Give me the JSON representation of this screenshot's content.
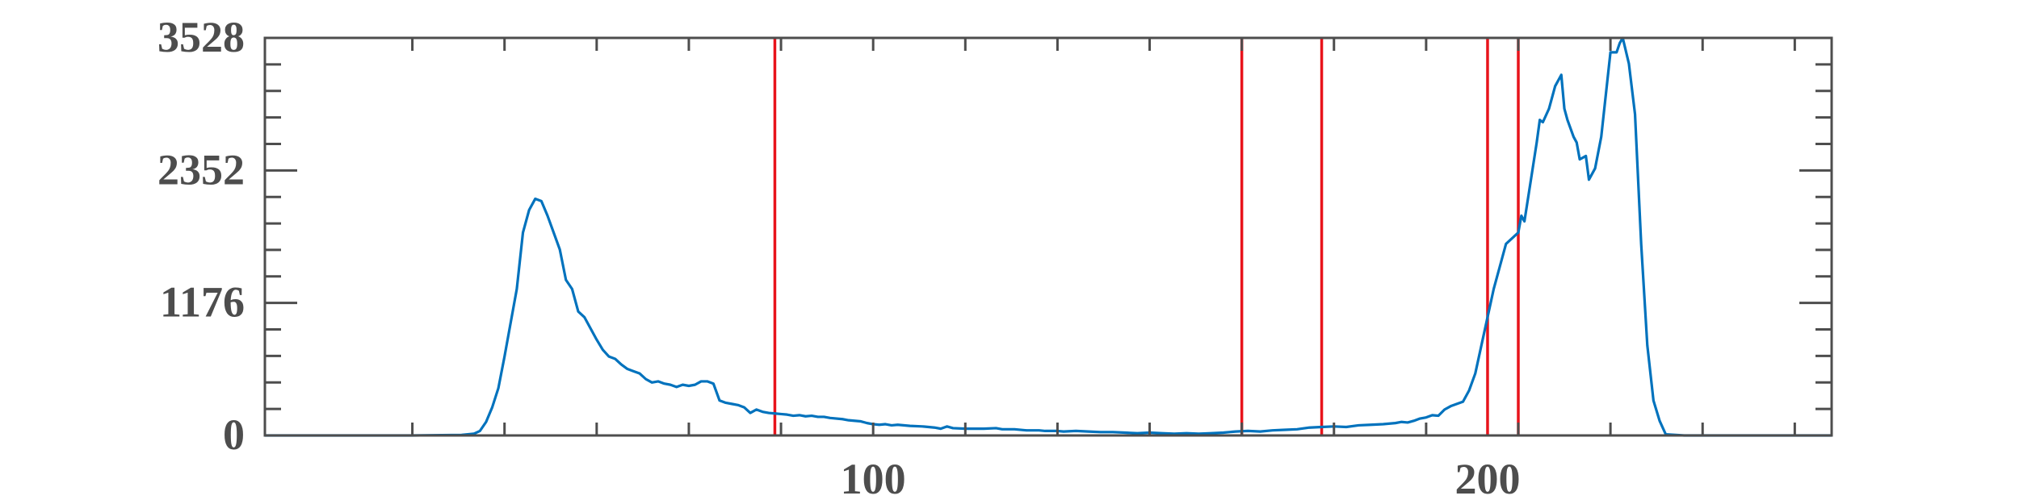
{
  "chart_data": {
    "type": "line",
    "title": "",
    "xlabel": "",
    "ylabel": "",
    "xlim": [
      1,
      256
    ],
    "ylim": [
      0,
      3528
    ],
    "x_ticks": [
      {
        "value": 100,
        "label": "100"
      },
      {
        "value": 200,
        "label": "200"
      }
    ],
    "y_ticks": [
      {
        "value": 0,
        "label": "0"
      },
      {
        "value": 1176,
        "label": "1176"
      },
      {
        "value": 2352,
        "label": "2352"
      },
      {
        "value": 3528,
        "label": "3528"
      }
    ],
    "grid": false,
    "series": [
      {
        "color": "#0072bd",
        "points": [
          [
            1,
            0
          ],
          [
            25,
            0
          ],
          [
            33,
            5
          ],
          [
            35,
            15
          ],
          [
            36,
            40
          ],
          [
            37,
            120
          ],
          [
            38,
            250
          ],
          [
            39,
            420
          ],
          [
            40,
            700
          ],
          [
            41,
            1000
          ],
          [
            42,
            1300
          ],
          [
            43,
            1800
          ],
          [
            44,
            2000
          ],
          [
            45,
            2100
          ],
          [
            46,
            2080
          ],
          [
            47,
            1950
          ],
          [
            48,
            1800
          ],
          [
            49,
            1650
          ],
          [
            50,
            1380
          ],
          [
            51,
            1300
          ],
          [
            52,
            1100
          ],
          [
            53,
            1050
          ],
          [
            54,
            950
          ],
          [
            55,
            850
          ],
          [
            56,
            760
          ],
          [
            57,
            700
          ],
          [
            58,
            680
          ],
          [
            59,
            630
          ],
          [
            60,
            590
          ],
          [
            61,
            570
          ],
          [
            62,
            550
          ],
          [
            63,
            500
          ],
          [
            64,
            470
          ],
          [
            65,
            480
          ],
          [
            66,
            460
          ],
          [
            67,
            450
          ],
          [
            68,
            430
          ],
          [
            69,
            450
          ],
          [
            70,
            440
          ],
          [
            71,
            450
          ],
          [
            72,
            480
          ],
          [
            73,
            480
          ],
          [
            74,
            460
          ],
          [
            75,
            310
          ],
          [
            76,
            290
          ],
          [
            77,
            280
          ],
          [
            78,
            270
          ],
          [
            79,
            250
          ],
          [
            80,
            200
          ],
          [
            81,
            230
          ],
          [
            82,
            210
          ],
          [
            83,
            200
          ],
          [
            84,
            195
          ],
          [
            85,
            190
          ],
          [
            86,
            185
          ],
          [
            87,
            175
          ],
          [
            88,
            180
          ],
          [
            89,
            170
          ],
          [
            90,
            175
          ],
          [
            91,
            165
          ],
          [
            92,
            165
          ],
          [
            93,
            155
          ],
          [
            95,
            145
          ],
          [
            96,
            135
          ],
          [
            98,
            125
          ],
          [
            99,
            110
          ],
          [
            100,
            100
          ],
          [
            101,
            95
          ],
          [
            102,
            100
          ],
          [
            103,
            90
          ],
          [
            104,
            95
          ],
          [
            106,
            85
          ],
          [
            108,
            80
          ],
          [
            109,
            75
          ],
          [
            110,
            70
          ],
          [
            111,
            60
          ],
          [
            112,
            80
          ],
          [
            113,
            65
          ],
          [
            115,
            60
          ],
          [
            118,
            60
          ],
          [
            120,
            65
          ],
          [
            121,
            55
          ],
          [
            123,
            55
          ],
          [
            125,
            45
          ],
          [
            127,
            45
          ],
          [
            128,
            40
          ],
          [
            130,
            40
          ],
          [
            131,
            35
          ],
          [
            133,
            40
          ],
          [
            135,
            35
          ],
          [
            137,
            30
          ],
          [
            139,
            30
          ],
          [
            141,
            25
          ],
          [
            143,
            20
          ],
          [
            145,
            25
          ],
          [
            147,
            20
          ],
          [
            149,
            15
          ],
          [
            151,
            20
          ],
          [
            153,
            15
          ],
          [
            155,
            20
          ],
          [
            157,
            25
          ],
          [
            159,
            35
          ],
          [
            161,
            40
          ],
          [
            163,
            35
          ],
          [
            165,
            45
          ],
          [
            167,
            50
          ],
          [
            169,
            55
          ],
          [
            171,
            70
          ],
          [
            173,
            75
          ],
          [
            175,
            80
          ],
          [
            177,
            75
          ],
          [
            179,
            90
          ],
          [
            181,
            95
          ],
          [
            183,
            100
          ],
          [
            185,
            110
          ],
          [
            186,
            120
          ],
          [
            187,
            115
          ],
          [
            188,
            130
          ],
          [
            189,
            150
          ],
          [
            190,
            160
          ],
          [
            191,
            180
          ],
          [
            192,
            175
          ],
          [
            193,
            230
          ],
          [
            194,
            260
          ],
          [
            195,
            280
          ],
          [
            196,
            300
          ],
          [
            197,
            400
          ],
          [
            198,
            550
          ],
          [
            199,
            800
          ],
          [
            200,
            1050
          ],
          [
            201,
            1300
          ],
          [
            202,
            1500
          ],
          [
            203,
            1700
          ],
          [
            204,
            1750
          ],
          [
            205,
            1800
          ],
          [
            205.5,
            1950
          ],
          [
            206,
            1900
          ],
          [
            207,
            2250
          ],
          [
            208,
            2600
          ],
          [
            208.5,
            2800
          ],
          [
            209,
            2780
          ],
          [
            210,
            2900
          ],
          [
            211,
            3100
          ],
          [
            212,
            3200
          ],
          [
            212.5,
            2900
          ],
          [
            213,
            2800
          ],
          [
            214,
            2650
          ],
          [
            214.5,
            2600
          ],
          [
            215,
            2450
          ],
          [
            216,
            2480
          ],
          [
            216.5,
            2270
          ],
          [
            217.5,
            2370
          ],
          [
            218.5,
            2650
          ],
          [
            219.5,
            3150
          ],
          [
            220,
            3400
          ],
          [
            221,
            3400
          ],
          [
            221.5,
            3480
          ],
          [
            222,
            3528
          ],
          [
            223,
            3300
          ],
          [
            224,
            2850
          ],
          [
            225,
            1700
          ],
          [
            226,
            800
          ],
          [
            227,
            310
          ],
          [
            228,
            130
          ],
          [
            229,
            10
          ],
          [
            232,
            0
          ],
          [
            256,
            0
          ]
        ]
      }
    ],
    "vertical_lines": {
      "color": "#e8131b",
      "x": [
        84,
        160,
        173,
        200,
        205
      ]
    }
  }
}
